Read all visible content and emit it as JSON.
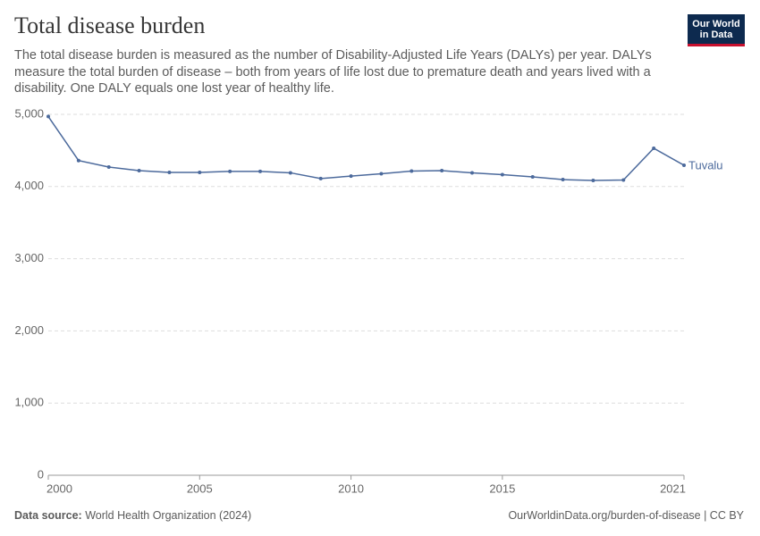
{
  "chart_data": {
    "type": "line",
    "title": "Total disease burden",
    "subtitle": "The total disease burden is measured as the number of Disability-Adjusted Life Years (DALYs) per year. DALYs measure the total burden of disease – both from years of life lost due to premature death and years lived with a disability. One DALY equals one lost year of healthy life.",
    "x": [
      2000,
      2001,
      2002,
      2003,
      2004,
      2005,
      2006,
      2007,
      2008,
      2009,
      2010,
      2011,
      2012,
      2013,
      2014,
      2015,
      2016,
      2017,
      2018,
      2019,
      2020,
      2021
    ],
    "series": [
      {
        "name": "Tuvalu",
        "color": "#4c6a9c",
        "values": [
          4970,
          4360,
          4270,
          4220,
          4195,
          4195,
          4210,
          4210,
          4190,
          4110,
          4145,
          4177,
          4214,
          4220,
          4190,
          4165,
          4134,
          4096,
          4084,
          4090,
          4530,
          4295
        ]
      }
    ],
    "xlim": [
      2000,
      2021
    ],
    "xticks": [
      2000,
      2005,
      2010,
      2015,
      2021
    ],
    "ylim": [
      0,
      5000
    ],
    "yticks": [
      0,
      {
        "value": 1000,
        "label": "1,000"
      },
      {
        "value": 2000,
        "label": "2,000"
      },
      {
        "value": 3000,
        "label": "3,000"
      },
      {
        "value": 4000,
        "label": "4,000"
      },
      {
        "value": 5000,
        "label": "5,000"
      }
    ],
    "grid": true
  },
  "logo": [
    "Our World",
    "in Data"
  ],
  "footer": {
    "source_label": "Data source:",
    "source": "World Health Organization (2024)",
    "url": "OurWorldinData.org/burden-of-disease | CC BY"
  }
}
